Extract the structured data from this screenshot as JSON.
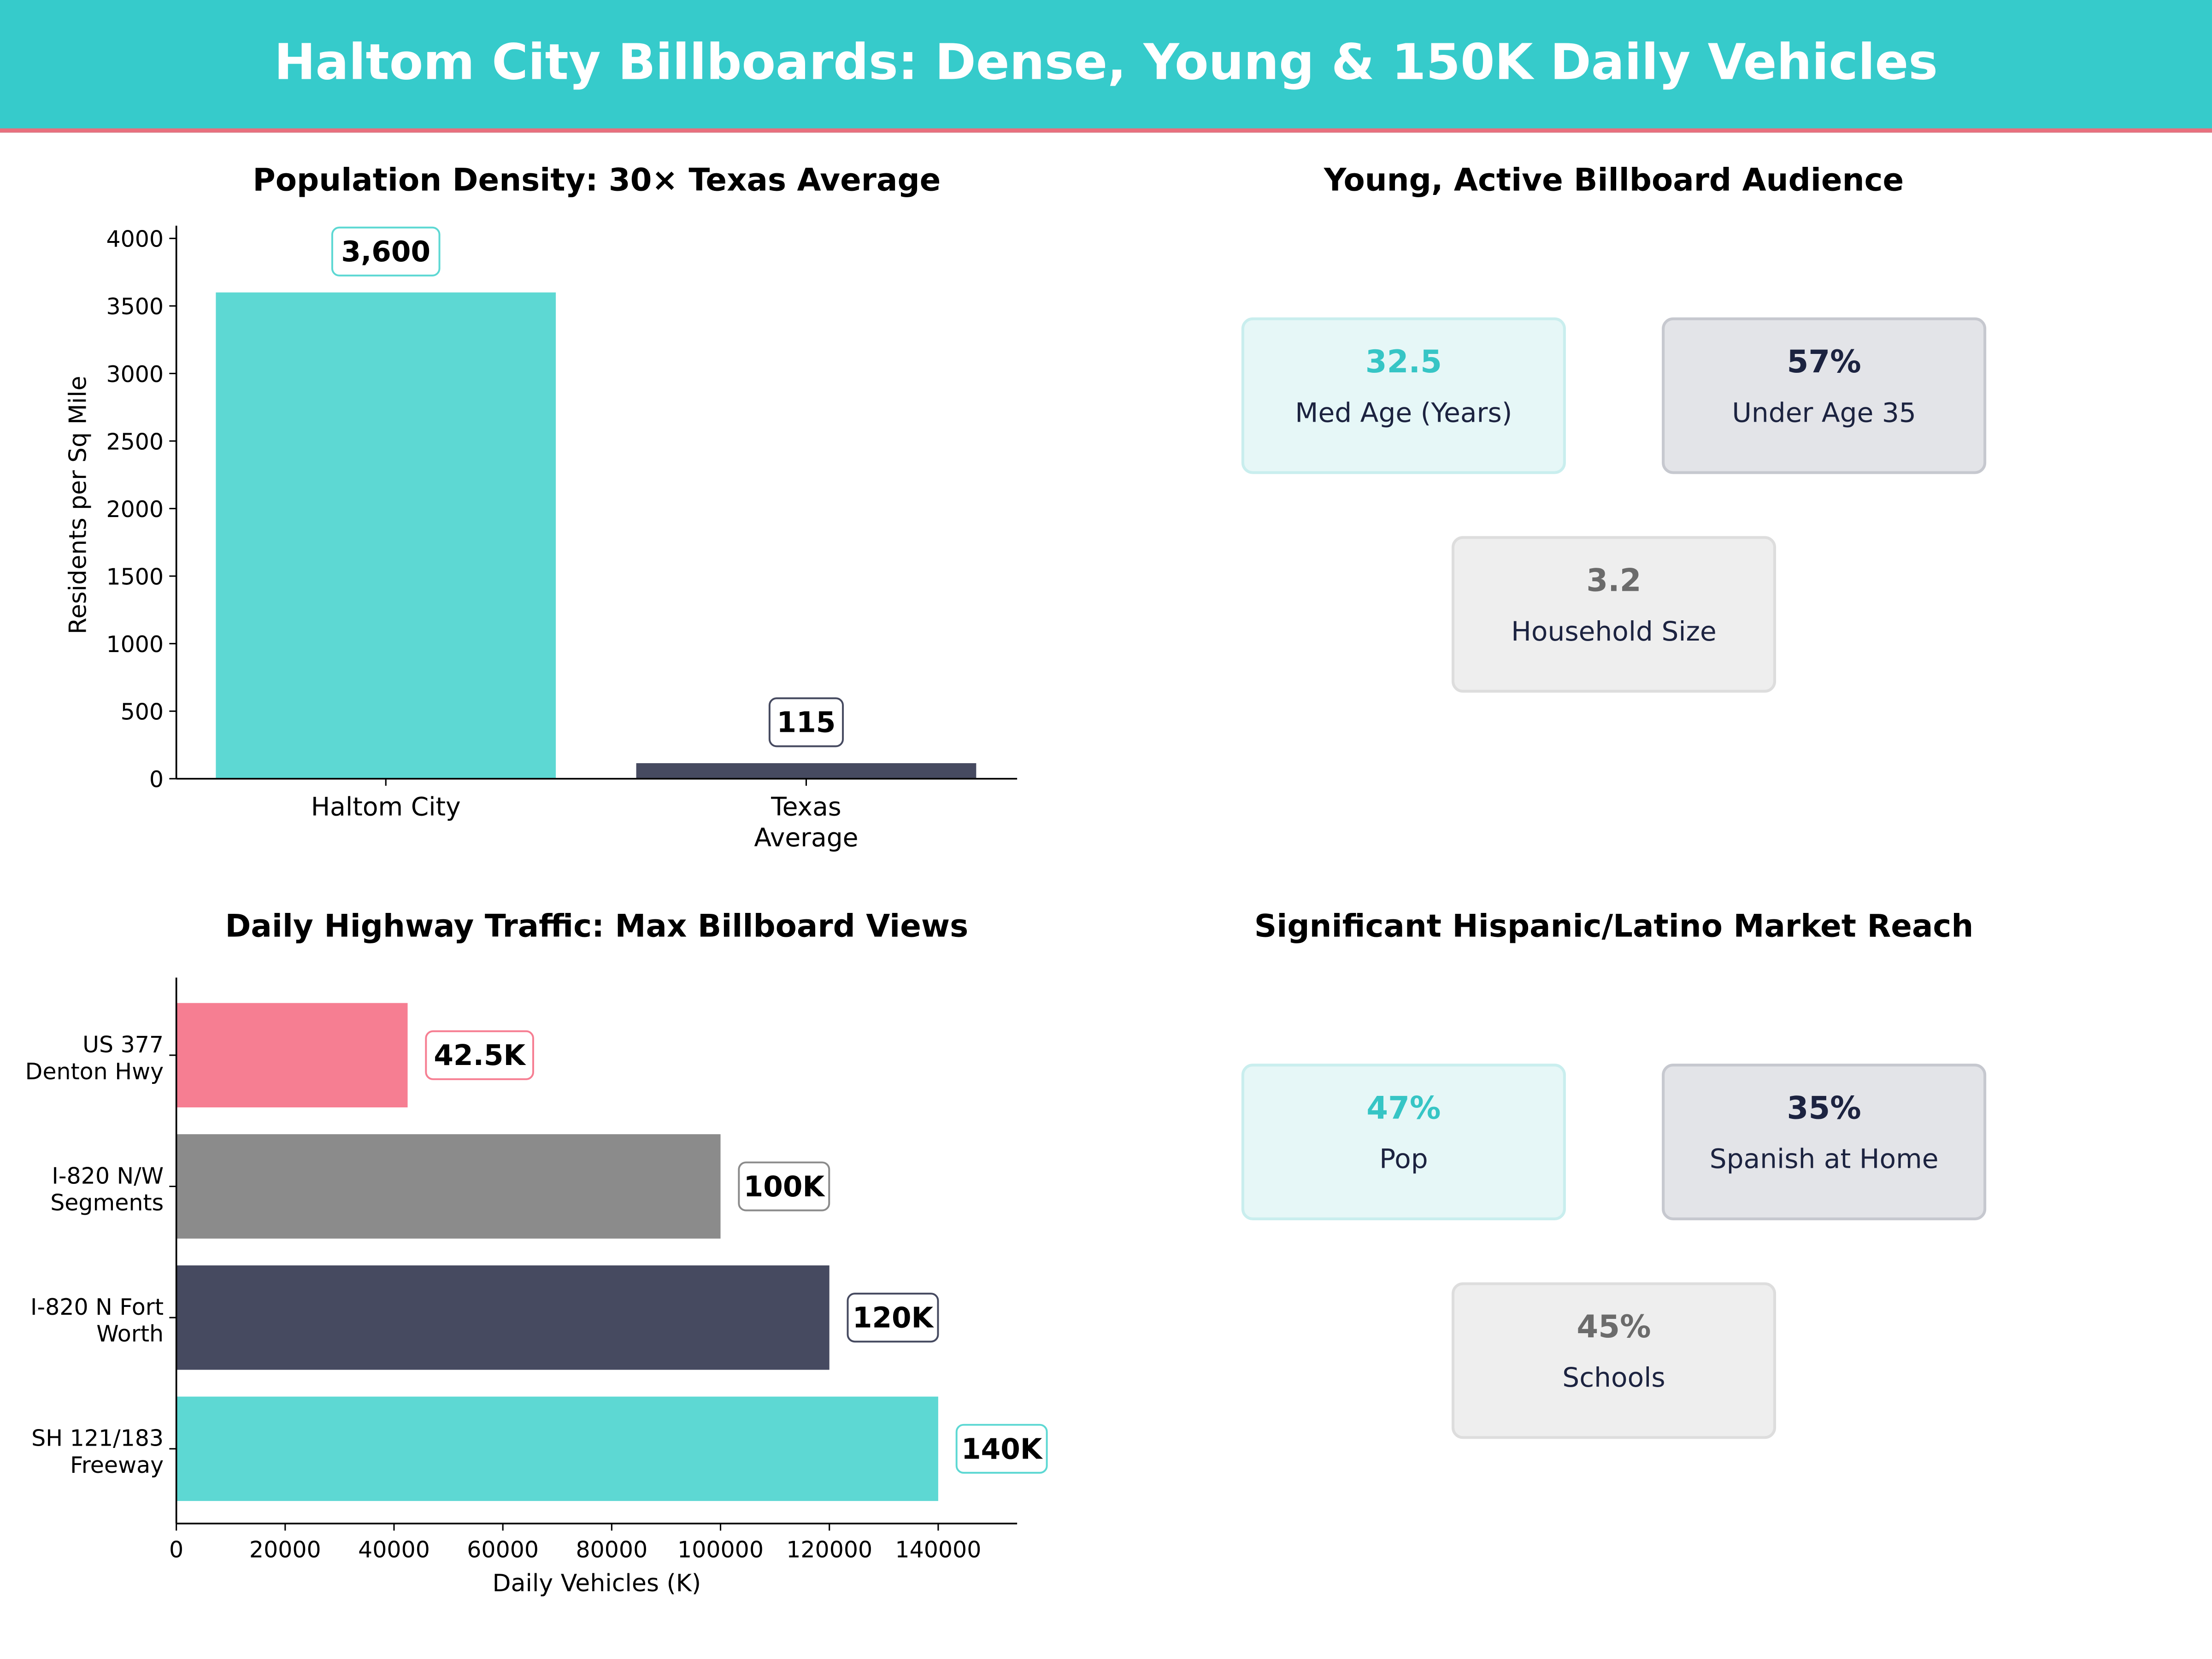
{
  "title": "Haltom City Billboards: Dense, Young & 150K Daily Vehicles",
  "colors": {
    "header": "#36CBCB",
    "accent_line": "#E8707E",
    "teal": "#5DD8D3",
    "navy": "#464A60",
    "pink": "#F67E92",
    "gray": "#8B8B8B"
  },
  "chart_data": [
    {
      "type": "bar",
      "title": "Population Density: 30× Texas Average",
      "categories": [
        "Haltom City",
        "Texas\nAverage"
      ],
      "values": [
        3600,
        115
      ],
      "data_labels": [
        "3,600",
        "115"
      ],
      "bar_colors": [
        "#5DD8D3",
        "#464A60"
      ],
      "xlabel": "",
      "ylabel": "Residents per Sq Mile",
      "ylim": [
        0,
        4000
      ],
      "yticks": [
        0,
        500,
        1000,
        1500,
        2000,
        2500,
        3000,
        3500,
        4000
      ],
      "grid": false
    },
    {
      "type": "bar",
      "orientation": "horizontal",
      "title": "Daily Highway Traffic: Max Billboard Views",
      "categories": [
        "US 377\nDenton Hwy",
        "I-820 N/W\nSegments",
        "I-820 N Fort\nWorth",
        "SH 121/183\nFreeway"
      ],
      "values": [
        42500,
        100000,
        120000,
        140000
      ],
      "data_labels": [
        "42.5K",
        "100K",
        "120K",
        "140K"
      ],
      "bar_colors": [
        "#F67E92",
        "#8B8B8B",
        "#464A60",
        "#5DD8D3"
      ],
      "xlabel": "Daily Vehicles (K)",
      "ylabel": "",
      "xlim": [
        0,
        154500
      ],
      "xticks": [
        0,
        20000,
        40000,
        60000,
        80000,
        100000,
        120000,
        140000
      ],
      "grid": false
    }
  ],
  "audience": {
    "title": "Young, Active Billboard Audience",
    "cards": [
      {
        "value": "32.5",
        "label": "Med Age (Years)"
      },
      {
        "value": "57%",
        "label": "Under Age 35"
      },
      {
        "value": "3.2",
        "label": "Household Size"
      }
    ]
  },
  "hispanic": {
    "title": "Significant Hispanic/Latino Market Reach",
    "cards": [
      {
        "value": "47%",
        "label": "Pop"
      },
      {
        "value": "35%",
        "label": "Spanish at Home"
      },
      {
        "value": "45%",
        "label": "Schools"
      }
    ]
  }
}
